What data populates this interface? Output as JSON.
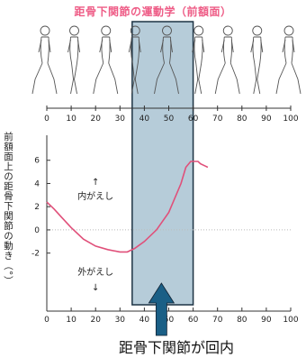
{
  "chart_data": {
    "type": "line",
    "title": "距骨下関節の運動学（前額面）",
    "ylabel": "前額面上の距骨下関節の動き（°）",
    "xlim": [
      0,
      100
    ],
    "ylim": [
      -7,
      8
    ],
    "x_ticks": [
      0,
      10,
      20,
      30,
      40,
      50,
      60,
      70,
      80,
      90,
      100
    ],
    "y_ticks": [
      -2,
      0,
      2,
      4,
      6
    ],
    "series": [
      {
        "x": [
          0,
          3,
          6,
          10,
          15,
          20,
          25,
          30,
          33,
          36,
          40,
          45,
          50,
          55,
          57,
          59,
          62,
          63,
          65,
          66
        ],
        "y": [
          2.4,
          1.8,
          1.1,
          0.2,
          -0.8,
          -1.4,
          -1.7,
          -1.9,
          -1.9,
          -1.6,
          -1.0,
          0.0,
          1.5,
          4.0,
          5.4,
          5.9,
          5.9,
          5.7,
          5.5,
          5.4
        ],
        "color": "#e0507a"
      }
    ],
    "annotations": {
      "inversion_label": "内がえし",
      "eversion_label": "外がえし"
    },
    "highlight_range": [
      35,
      60
    ],
    "highlight_color": "#a9c3d2",
    "grid": false
  },
  "figures_label": "歩行周期の人物シルエット",
  "caption": "距骨下関節が回内"
}
